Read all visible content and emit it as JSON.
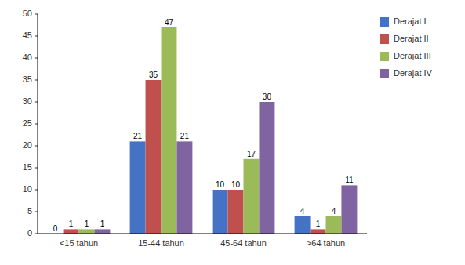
{
  "chart_data": {
    "type": "bar",
    "categories": [
      "<15 tahun",
      "15-44 tahun",
      "45-64 tahun",
      ">64 tahun"
    ],
    "series": [
      {
        "name": "Derajat I",
        "color": "#4472C4",
        "values": [
          0,
          21,
          10,
          4
        ]
      },
      {
        "name": "Derajat II",
        "color": "#C0504D",
        "values": [
          1,
          35,
          10,
          1
        ]
      },
      {
        "name": "Derajat III",
        "color": "#9BBB59",
        "values": [
          1,
          47,
          17,
          4
        ]
      },
      {
        "name": "Derajat IV",
        "color": "#8064A2",
        "values": [
          1,
          21,
          30,
          11
        ]
      }
    ],
    "ylim": [
      0,
      50
    ],
    "yticks": [
      0,
      5,
      10,
      15,
      20,
      25,
      30,
      35,
      40,
      45,
      50
    ],
    "grid": false,
    "legend": "right",
    "data_labels": true
  }
}
